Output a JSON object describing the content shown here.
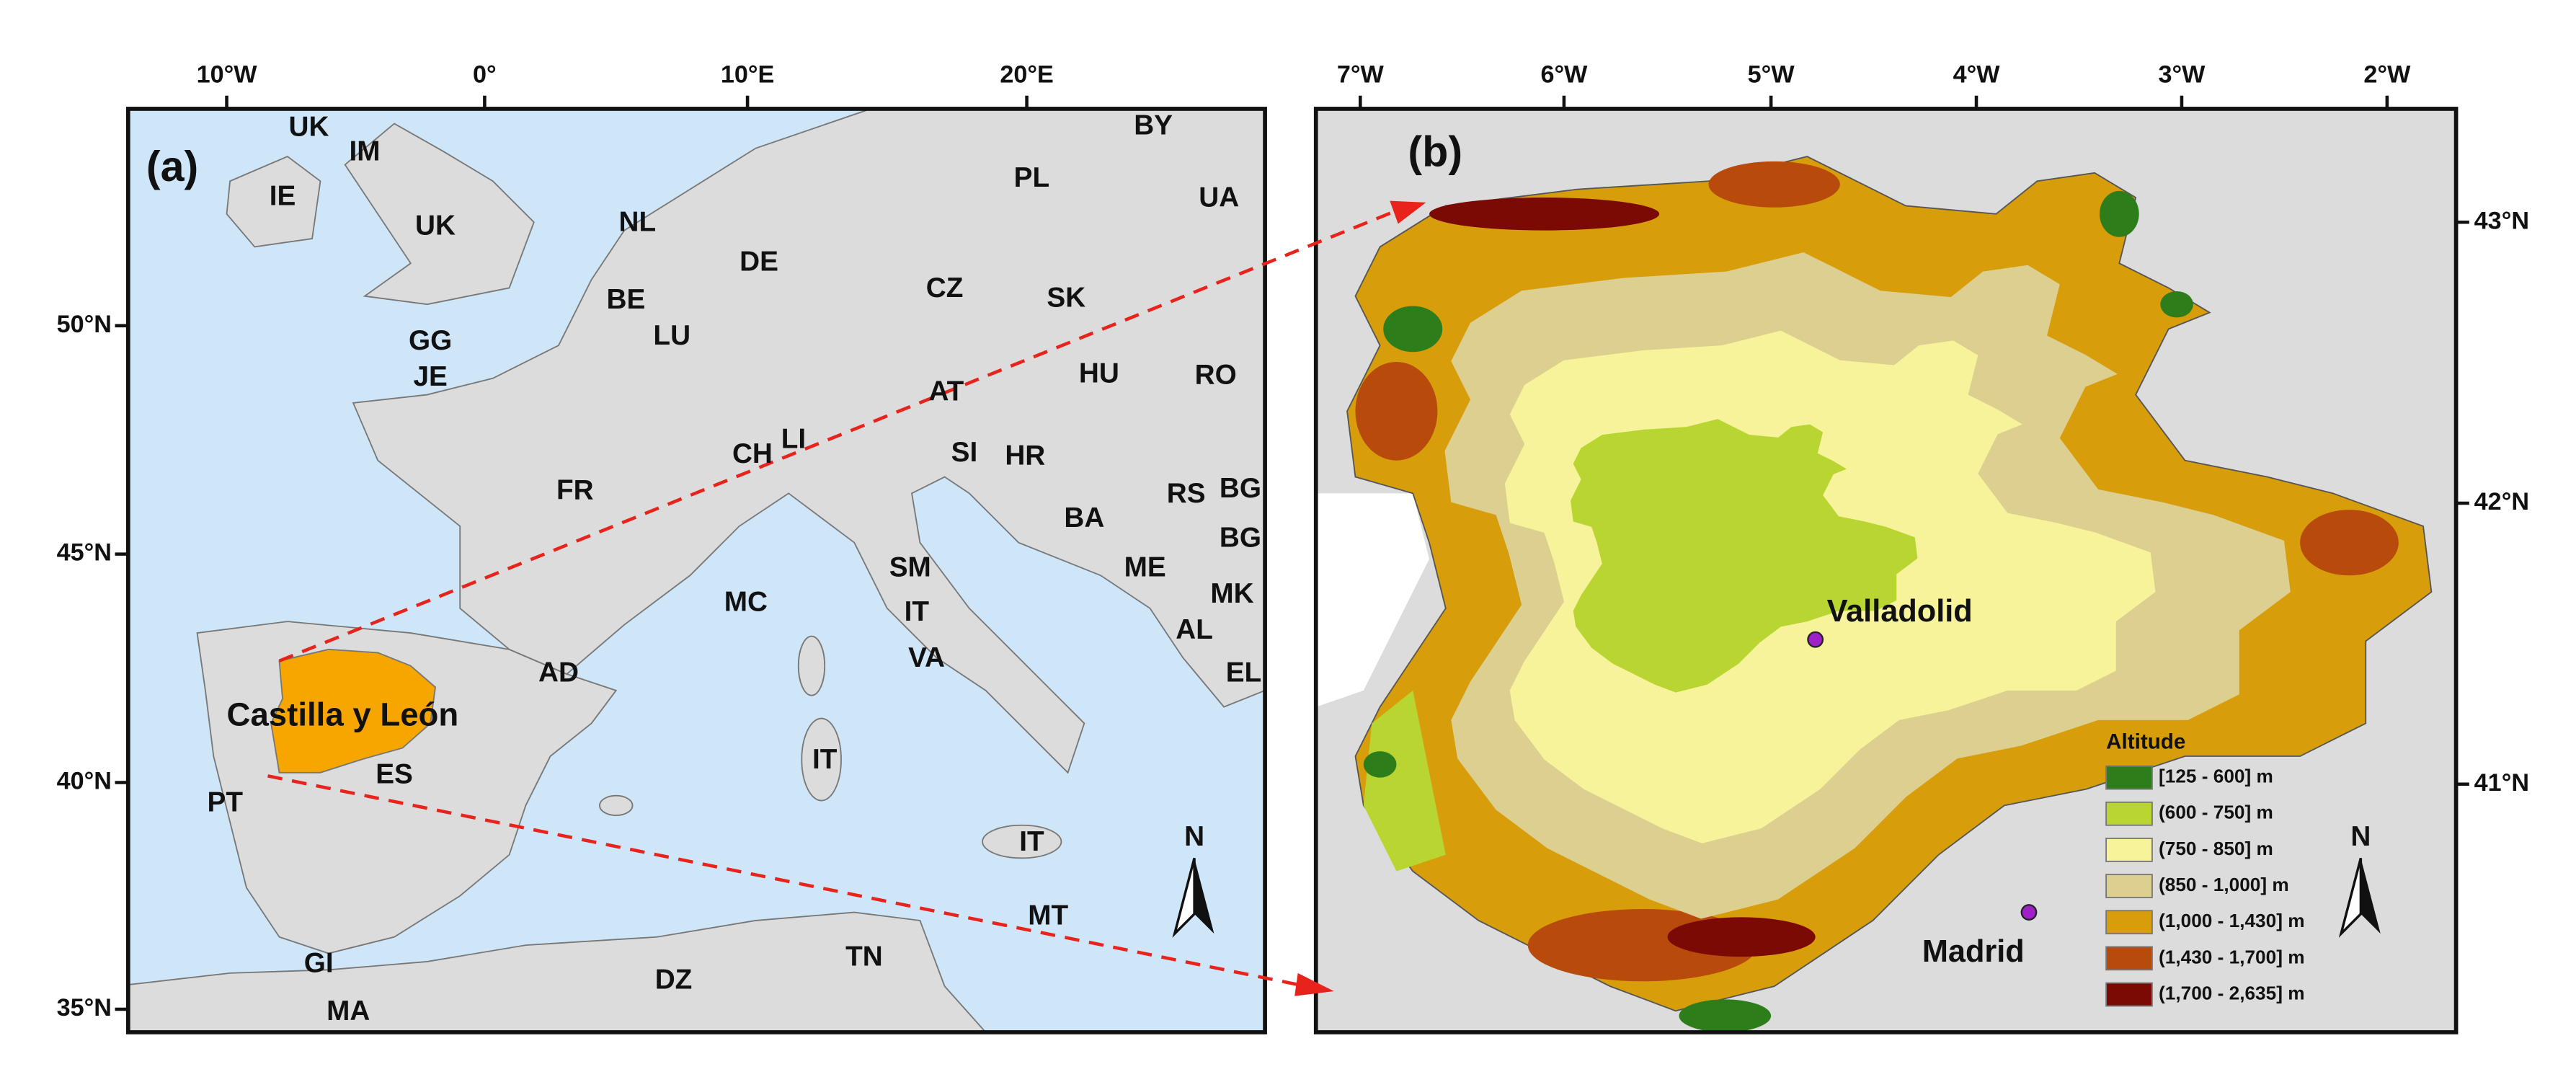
{
  "panel_a": {
    "label": "(a)",
    "x_ticks": [
      "10°W",
      "0°",
      "10°E",
      "20°E"
    ],
    "y_ticks": [
      "50°N",
      "45°N",
      "40°N",
      "35°N"
    ],
    "countries": [
      "UK",
      "IM",
      "IE",
      "UK",
      "NL",
      "DE",
      "PL",
      "BY",
      "UA",
      "BE",
      "LU",
      "CZ",
      "SK",
      "GG",
      "JE",
      "AT",
      "HU",
      "RO",
      "CH",
      "LI",
      "SI",
      "HR",
      "RS",
      "BG",
      "FR",
      "BA",
      "BG",
      "SM",
      "ME",
      "MK",
      "MC",
      "IT",
      "AL",
      "AD",
      "VA",
      "EL",
      "IT",
      "ES",
      "PT",
      "IT",
      "MT",
      "GI",
      "DZ",
      "TN",
      "MA"
    ],
    "region": "Castilla y León",
    "north": "N"
  },
  "panel_b": {
    "label": "(b)",
    "x_ticks": [
      "7°W",
      "6°W",
      "5°W",
      "4°W",
      "3°W",
      "2°W"
    ],
    "y_ticks": [
      "43°N",
      "42°N",
      "41°N"
    ],
    "cities": [
      "Valladolid",
      "Madrid"
    ],
    "north": "N",
    "legend": {
      "title": "Altitude",
      "items": [
        {
          "label": "[125 - 600] m",
          "color": "#2e7d1b"
        },
        {
          "label": "(600 - 750] m",
          "color": "#b9d531"
        },
        {
          "label": "(750 - 850] m",
          "color": "#f6f39b"
        },
        {
          "label": "(850 - 1,000] m",
          "color": "#dccf8f"
        },
        {
          "label": "(1,000 - 1,430] m",
          "color": "#d79d0b"
        },
        {
          "label": "(1,430 - 1,700] m",
          "color": "#b84a0c"
        },
        {
          "label": "(1,700 - 2,635] m",
          "color": "#7b0a04"
        }
      ]
    }
  }
}
